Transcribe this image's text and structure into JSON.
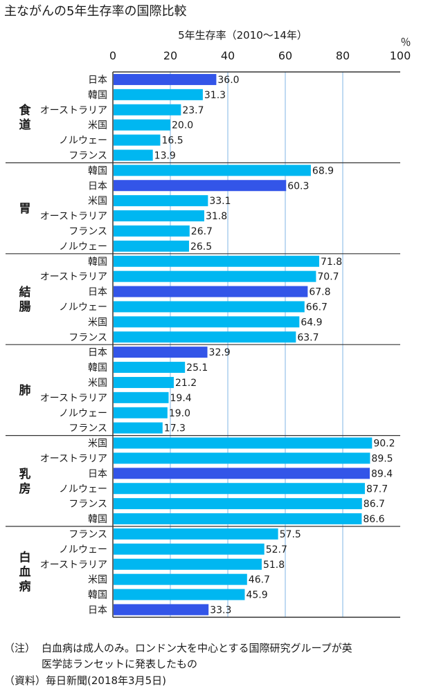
{
  "chart_data": {
    "type": "bar",
    "orientation": "horizontal",
    "title": "主ながんの5年生存率の国際比較",
    "xlabel": "5年生存率（2010〜14年）",
    "unit": "％",
    "xlim": [
      0,
      100
    ],
    "xticks": [
      "0",
      "20",
      "40",
      "60",
      "80",
      "100"
    ],
    "highlight_color": "#3355e8",
    "bar_color": "#00b7f1",
    "groups": [
      {
        "name": "食道",
        "bars": [
          {
            "country": "日本",
            "value": 36.0,
            "label": "36.0",
            "highlight": true
          },
          {
            "country": "韓国",
            "value": 31.3,
            "label": "31.3",
            "highlight": false
          },
          {
            "country": "オーストラリア",
            "value": 23.7,
            "label": "23.7",
            "highlight": false
          },
          {
            "country": "米国",
            "value": 20.0,
            "label": "20.0",
            "highlight": false
          },
          {
            "country": "ノルウェー",
            "value": 16.5,
            "label": "16.5",
            "highlight": false
          },
          {
            "country": "フランス",
            "value": 13.9,
            "label": "13.9",
            "highlight": false
          }
        ]
      },
      {
        "name": "胃",
        "bars": [
          {
            "country": "韓国",
            "value": 68.9,
            "label": "68.9",
            "highlight": false
          },
          {
            "country": "日本",
            "value": 60.3,
            "label": "60.3",
            "highlight": true
          },
          {
            "country": "米国",
            "value": 33.1,
            "label": "33.1",
            "highlight": false
          },
          {
            "country": "オーストラリア",
            "value": 31.8,
            "label": "31.8",
            "highlight": false
          },
          {
            "country": "フランス",
            "value": 26.7,
            "label": "26.7",
            "highlight": false
          },
          {
            "country": "ノルウェー",
            "value": 26.5,
            "label": "26.5",
            "highlight": false
          }
        ]
      },
      {
        "name": "結腸",
        "bars": [
          {
            "country": "韓国",
            "value": 71.8,
            "label": "71.8",
            "highlight": false
          },
          {
            "country": "オーストラリア",
            "value": 70.7,
            "label": "70.7",
            "highlight": false
          },
          {
            "country": "日本",
            "value": 67.8,
            "label": "67.8",
            "highlight": true
          },
          {
            "country": "ノルウェー",
            "value": 66.7,
            "label": "66.7",
            "highlight": false
          },
          {
            "country": "米国",
            "value": 64.9,
            "label": "64.9",
            "highlight": false
          },
          {
            "country": "フランス",
            "value": 63.7,
            "label": "63.7",
            "highlight": false
          }
        ]
      },
      {
        "name": "肺",
        "bars": [
          {
            "country": "日本",
            "value": 32.9,
            "label": "32.9",
            "highlight": true
          },
          {
            "country": "韓国",
            "value": 25.1,
            "label": "25.1",
            "highlight": false
          },
          {
            "country": "米国",
            "value": 21.2,
            "label": "21.2",
            "highlight": false
          },
          {
            "country": "オーストラリア",
            "value": 19.4,
            "label": "19.4",
            "highlight": false
          },
          {
            "country": "ノルウェー",
            "value": 19.0,
            "label": "19.0",
            "highlight": false
          },
          {
            "country": "フランス",
            "value": 17.3,
            "label": "17.3",
            "highlight": false
          }
        ]
      },
      {
        "name": "乳房",
        "bars": [
          {
            "country": "米国",
            "value": 90.2,
            "label": "90.2",
            "highlight": false
          },
          {
            "country": "オーストラリア",
            "value": 89.5,
            "label": "89.5",
            "highlight": false
          },
          {
            "country": "日本",
            "value": 89.4,
            "label": "89.4",
            "highlight": true
          },
          {
            "country": "ノルウェー",
            "value": 87.7,
            "label": "87.7",
            "highlight": false
          },
          {
            "country": "フランス",
            "value": 86.7,
            "label": "86.7",
            "highlight": false
          },
          {
            "country": "韓国",
            "value": 86.6,
            "label": "86.6",
            "highlight": false
          }
        ]
      },
      {
        "name": "白血病",
        "bars": [
          {
            "country": "フランス",
            "value": 57.5,
            "label": "57.5",
            "highlight": false
          },
          {
            "country": "ノルウェー",
            "value": 52.7,
            "label": "52.7",
            "highlight": false
          },
          {
            "country": "オーストラリア",
            "value": 51.8,
            "label": "51.8",
            "highlight": false
          },
          {
            "country": "米国",
            "value": 46.7,
            "label": "46.7",
            "highlight": false
          },
          {
            "country": "韓国",
            "value": 45.9,
            "label": "45.9",
            "highlight": false
          },
          {
            "country": "日本",
            "value": 33.3,
            "label": "33.3",
            "highlight": true
          }
        ]
      }
    ]
  },
  "notes": {
    "note_prefix": "（注）",
    "note_line1": "白血病は成人のみ。ロンドン大を中心とする国際研究グループが英",
    "note_line2": "医学誌ランセットに発表したもの",
    "source": "（資料）毎日新聞(2018年3月5日)"
  }
}
